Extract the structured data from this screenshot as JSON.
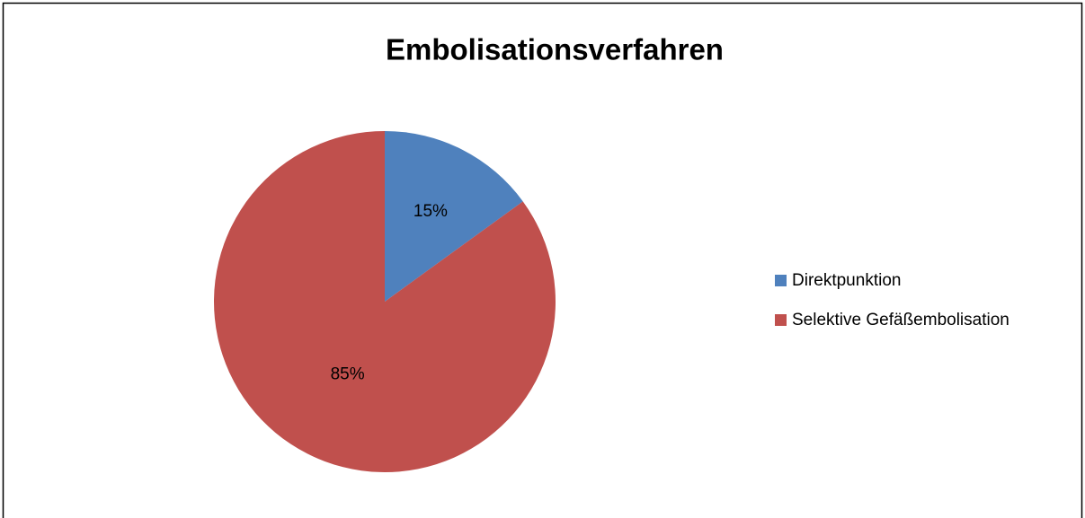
{
  "chart_data": {
    "type": "pie",
    "title": "Embolisationsverfahren",
    "categories": [
      "Direktpunktion",
      "Selektive Gefäßembolisation"
    ],
    "values": [
      15,
      85
    ],
    "value_labels": [
      "15%",
      "85%"
    ],
    "colors": [
      "#4f81bd",
      "#c0504d"
    ],
    "legend": "right"
  }
}
